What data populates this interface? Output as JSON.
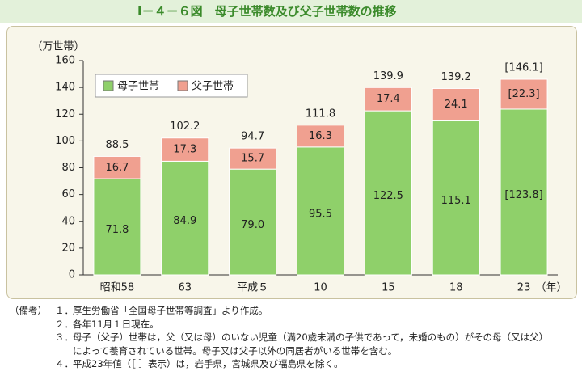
{
  "chart_data": {
    "type": "stacked_bar",
    "title": "Ⅰ－４－６図　母子世帯数及び父子世帯数の推移",
    "y_label": "（万世帯）",
    "x_label": "（年）",
    "categories": [
      "昭和58",
      "63",
      "平成５",
      "10",
      "15",
      "18",
      "23"
    ],
    "series": [
      {
        "name": "母子世帯",
        "color": "#8fd06a",
        "values": [
          71.8,
          84.9,
          79.0,
          95.5,
          122.5,
          115.1,
          123.8
        ],
        "value_labels": [
          "71.8",
          "84.9",
          "79.0",
          "95.5",
          "122.5",
          "115.1",
          "[123.8]"
        ]
      },
      {
        "name": "父子世帯",
        "color": "#f0a090",
        "values": [
          16.7,
          17.3,
          15.7,
          16.3,
          17.4,
          24.1,
          22.3
        ],
        "value_labels": [
          "16.7",
          "17.3",
          "15.7",
          "16.3",
          "17.4",
          "24.1",
          "[22.3]"
        ]
      }
    ],
    "totals": [
      88.5,
      102.2,
      94.7,
      111.8,
      139.9,
      139.2,
      146.1
    ],
    "total_labels": [
      "88.5",
      "102.2",
      "94.7",
      "111.8",
      "139.9",
      "139.2",
      "[146.1]"
    ],
    "ylim": [
      0,
      160
    ],
    "yticks": [
      0,
      20,
      40,
      60,
      80,
      100,
      120,
      140,
      160
    ],
    "grid": false,
    "legend": "upper left"
  },
  "notes": {
    "label": "（備考）",
    "items": [
      {
        "number": "１．",
        "lines": [
          "厚生労働省「全国母子世帯等調査」より作成。"
        ]
      },
      {
        "number": "２．",
        "lines": [
          "各年11月１日現在。"
        ]
      },
      {
        "number": "３．",
        "lines": [
          "母子（父子）世帯は，父（又は母）のいない児童（満20歳未満の子供であって，未婚のもの）がその母（又は父）",
          "によって養育されている世帯。母子又は父子以外の同居者がいる世帯を含む。"
        ]
      },
      {
        "number": "４．",
        "lines": [
          "平成23年値（［ ］表示）は，岩手県，宮城県及び福島県を除く。"
        ]
      }
    ]
  }
}
